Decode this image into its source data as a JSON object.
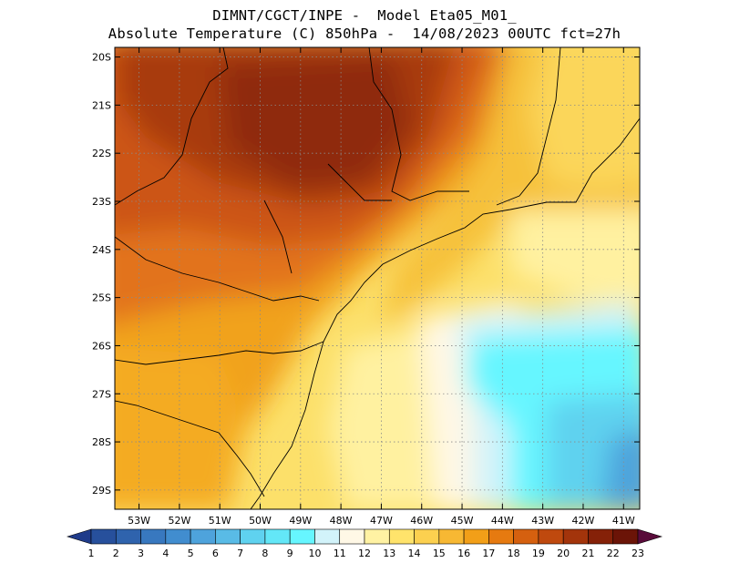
{
  "header": {
    "line1": "DIMNT/CGCT/INPE -  Model Eta05_M01_",
    "line2": "Absolute Temperature (C) 850hPa -  14/08/2023 00UTC fct=27h"
  },
  "map": {
    "lat_labels": [
      "20S",
      "21S",
      "22S",
      "23S",
      "24S",
      "25S",
      "26S",
      "27S",
      "28S",
      "29S"
    ],
    "lon_labels": [
      "53W",
      "52W",
      "51W",
      "50W",
      "49W",
      "48W",
      "47W",
      "46W",
      "45W",
      "44W",
      "43W",
      "42W",
      "41W"
    ],
    "lon_range": [
      -53.6,
      -40.6
    ],
    "lat_range": [
      -29.4,
      -19.8
    ]
  },
  "colorbar": {
    "labels": [
      "1",
      "2",
      "3",
      "4",
      "5",
      "6",
      "7",
      "8",
      "9",
      "10",
      "11",
      "12",
      "13",
      "14",
      "15",
      "16",
      "17",
      "18",
      "19",
      "20",
      "21",
      "22",
      "23"
    ],
    "colors": [
      "#1f3b8a",
      "#27509c",
      "#2f63ad",
      "#3878bf",
      "#418dcf",
      "#4ea3dc",
      "#59bbe6",
      "#5fd2ef",
      "#63e7f7",
      "#66f6ff",
      "#d2f3fa",
      "#fff8e6",
      "#fff2a3",
      "#ffe36b",
      "#fcd04f",
      "#f7b833",
      "#f29f18",
      "#e67a10",
      "#d5600f",
      "#bf490e",
      "#a3340b",
      "#852108",
      "#6b1407",
      "#590b3a"
    ]
  }
}
